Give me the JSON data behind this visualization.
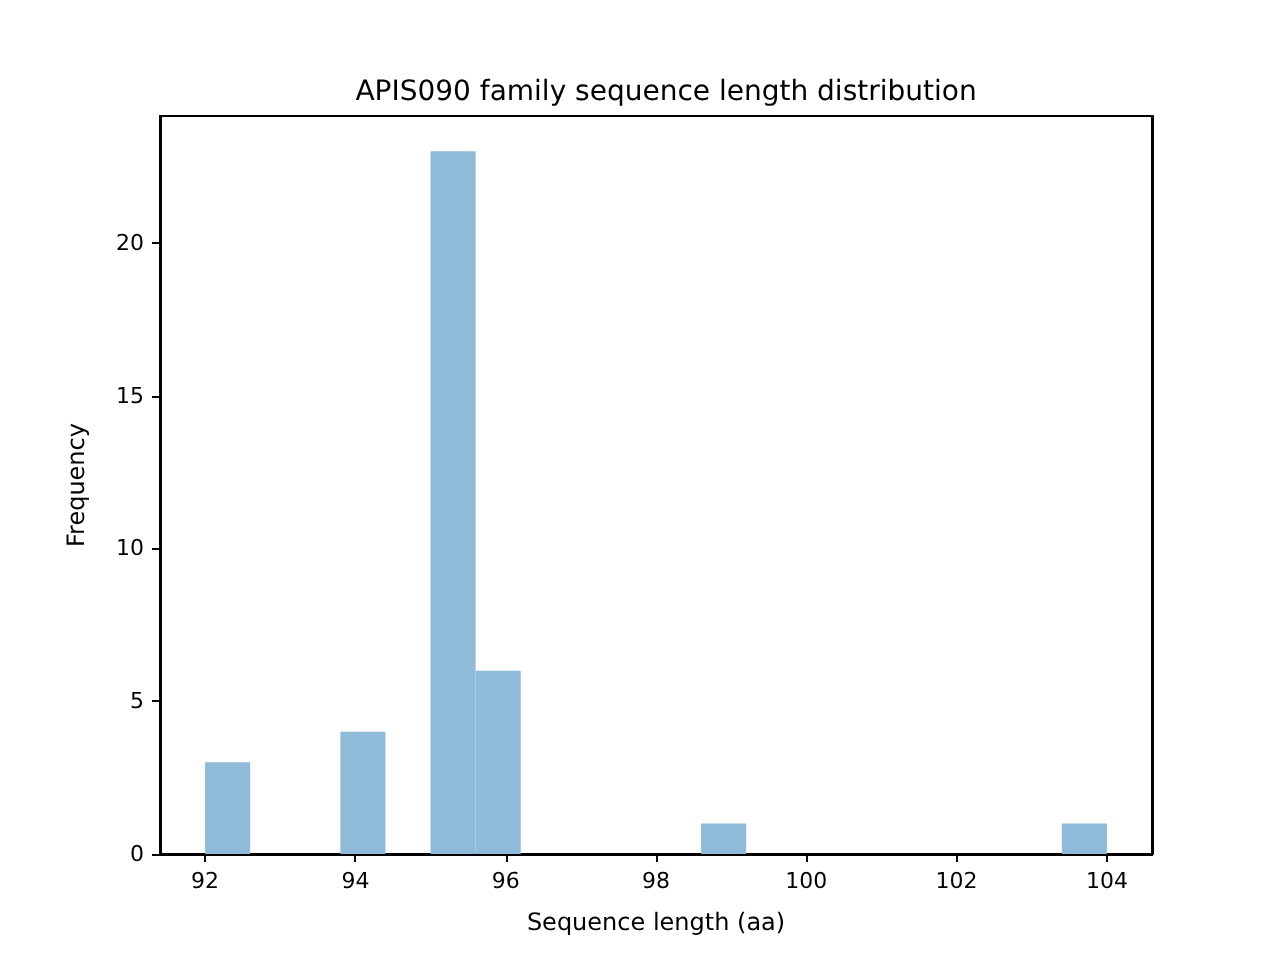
{
  "chart_data": {
    "type": "histogram",
    "title": "APIS090 family sequence length distribution",
    "xlabel": "Sequence length (aa)",
    "ylabel": "Frequency",
    "bins": [
      92,
      92.6,
      93.2,
      93.8,
      94.4,
      95,
      95.6,
      96.2,
      96.8,
      97.4,
      98,
      98.6,
      99.2,
      99.8,
      100.4,
      101,
      101.6,
      102.2,
      102.8,
      103.4,
      104
    ],
    "values": [
      3,
      0,
      0,
      4,
      0,
      23,
      6,
      0,
      0,
      0,
      0,
      1,
      0,
      0,
      0,
      0,
      0,
      0,
      0,
      1
    ],
    "color": "#8fbbd9",
    "xlim": [
      91.4,
      104.6
    ],
    "xticks": [
      92,
      94,
      96,
      98,
      100,
      102,
      104
    ],
    "ylim": [
      0,
      24.15
    ],
    "yticks": [
      0,
      5,
      10,
      15,
      20
    ],
    "grid": false
  }
}
